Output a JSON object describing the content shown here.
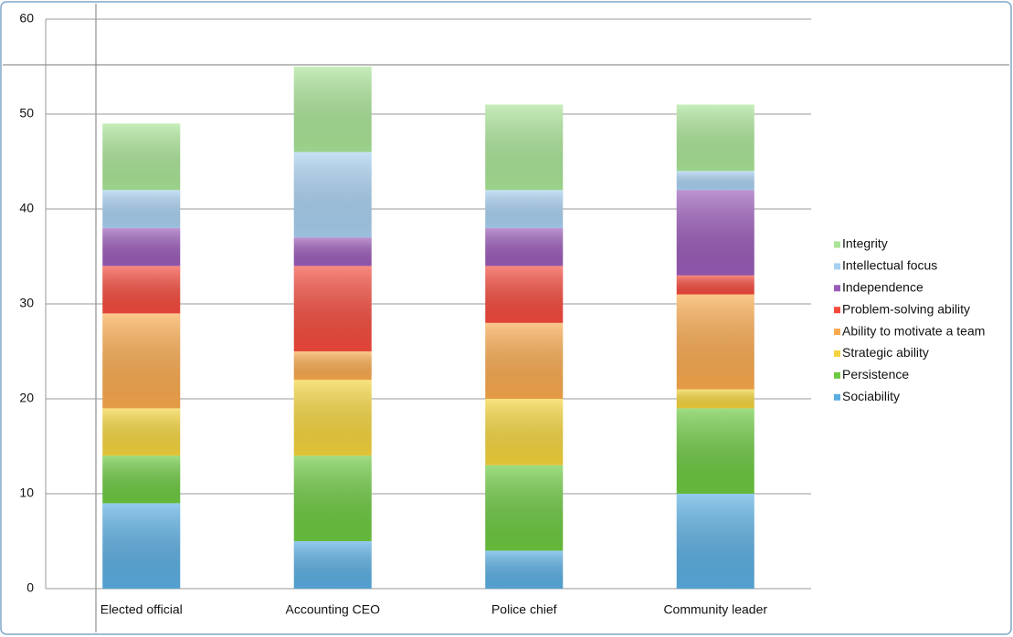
{
  "chart_data": {
    "type": "stacked_bar",
    "categories": [
      "Elected official",
      "Accounting CEO",
      "Police chief",
      "Community leader"
    ],
    "series": [
      {
        "name": "Sociability",
        "color": "#5aaee2",
        "values": [
          9,
          5,
          4,
          10
        ]
      },
      {
        "name": "Persistence",
        "color": "#6cc940",
        "values": [
          5,
          9,
          9,
          9
        ]
      },
      {
        "name": "Strategic ability",
        "color": "#f4d43c",
        "values": [
          5,
          8,
          7,
          2
        ]
      },
      {
        "name": "Ability to motivate a team",
        "color": "#f9a94d",
        "values": [
          10,
          3,
          8,
          10
        ]
      },
      {
        "name": "Problem-solving ability",
        "color": "#f44a3c",
        "values": [
          5,
          9,
          6,
          2
        ]
      },
      {
        "name": "Independence",
        "color": "#9a5bb8",
        "values": [
          4,
          3,
          4,
          9
        ]
      },
      {
        "name": "Intellectual focus",
        "color": "#a8d0f0",
        "values": [
          4,
          9,
          4,
          2
        ]
      },
      {
        "name": "Integrity",
        "color": "#a9e496",
        "values": [
          7,
          9,
          9,
          7
        ]
      }
    ],
    "ylim": [
      0,
      60
    ],
    "yticks": [
      0,
      10,
      20,
      30,
      40,
      50,
      60
    ],
    "grid": true,
    "legend": "right"
  }
}
